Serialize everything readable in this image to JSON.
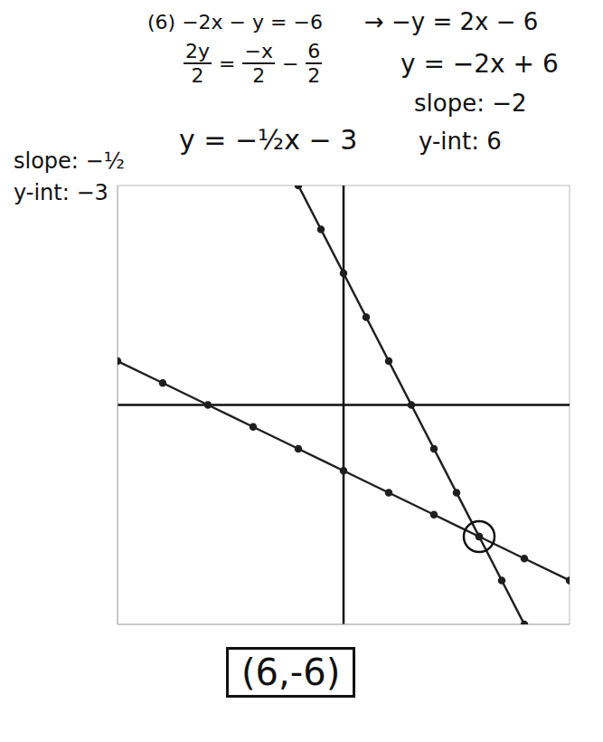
{
  "chart_data": {
    "type": "line",
    "xlim": [
      -10,
      10
    ],
    "ylim": [
      -10,
      10
    ],
    "xticks": [
      -10,
      -9,
      -8,
      -7,
      -6,
      -5,
      -4,
      -3,
      -2,
      -1,
      0,
      1,
      2,
      3,
      4,
      5,
      6,
      7,
      8,
      9,
      10
    ],
    "yticks": [
      -10,
      -9,
      -8,
      -7,
      -6,
      -5,
      -4,
      -3,
      -2,
      -1,
      0,
      1,
      2,
      3,
      4,
      5,
      6,
      7,
      8,
      9,
      10
    ],
    "grid": true,
    "tick_labels": false,
    "series": [
      {
        "color": "#1f1f1f",
        "marker": "circle",
        "line_style": "solid",
        "x": [
          -2,
          -1,
          0,
          1,
          2,
          3,
          4,
          5,
          6,
          7,
          8
        ],
        "values": [
          10,
          8,
          6,
          4,
          2,
          0,
          -2,
          -4,
          -6,
          -8,
          -10
        ]
      },
      {
        "color": "#1f1f1f",
        "marker": "circle",
        "line_style": "solid",
        "x": [
          -10,
          -8,
          -6,
          -4,
          -2,
          0,
          2,
          4,
          6,
          8,
          10
        ],
        "values": [
          2,
          1,
          0,
          -1,
          -2,
          -3,
          -4,
          -5,
          -6,
          -7,
          -8
        ]
      }
    ],
    "annotations": {
      "problem": "(6) −2x − y = −6",
      "step1": "→ −y = 2x − 6",
      "division": [
        {
          "num": "2y",
          "den": "2"
        },
        "=",
        {
          "num": "−x",
          "den": "2"
        },
        "−",
        {
          "num": "6",
          "den": "2"
        }
      ],
      "line1_equation": "y = −2x + 6",
      "line1_slope": "slope: −2",
      "line1_yint": "y-int: 6",
      "line2_equation": "y = −½x − 3",
      "line2_slope": "slope: −½",
      "line2_yint": "y-int: −3",
      "circled_point": [
        6,
        -6
      ],
      "answer": "(6,-6)"
    }
  }
}
